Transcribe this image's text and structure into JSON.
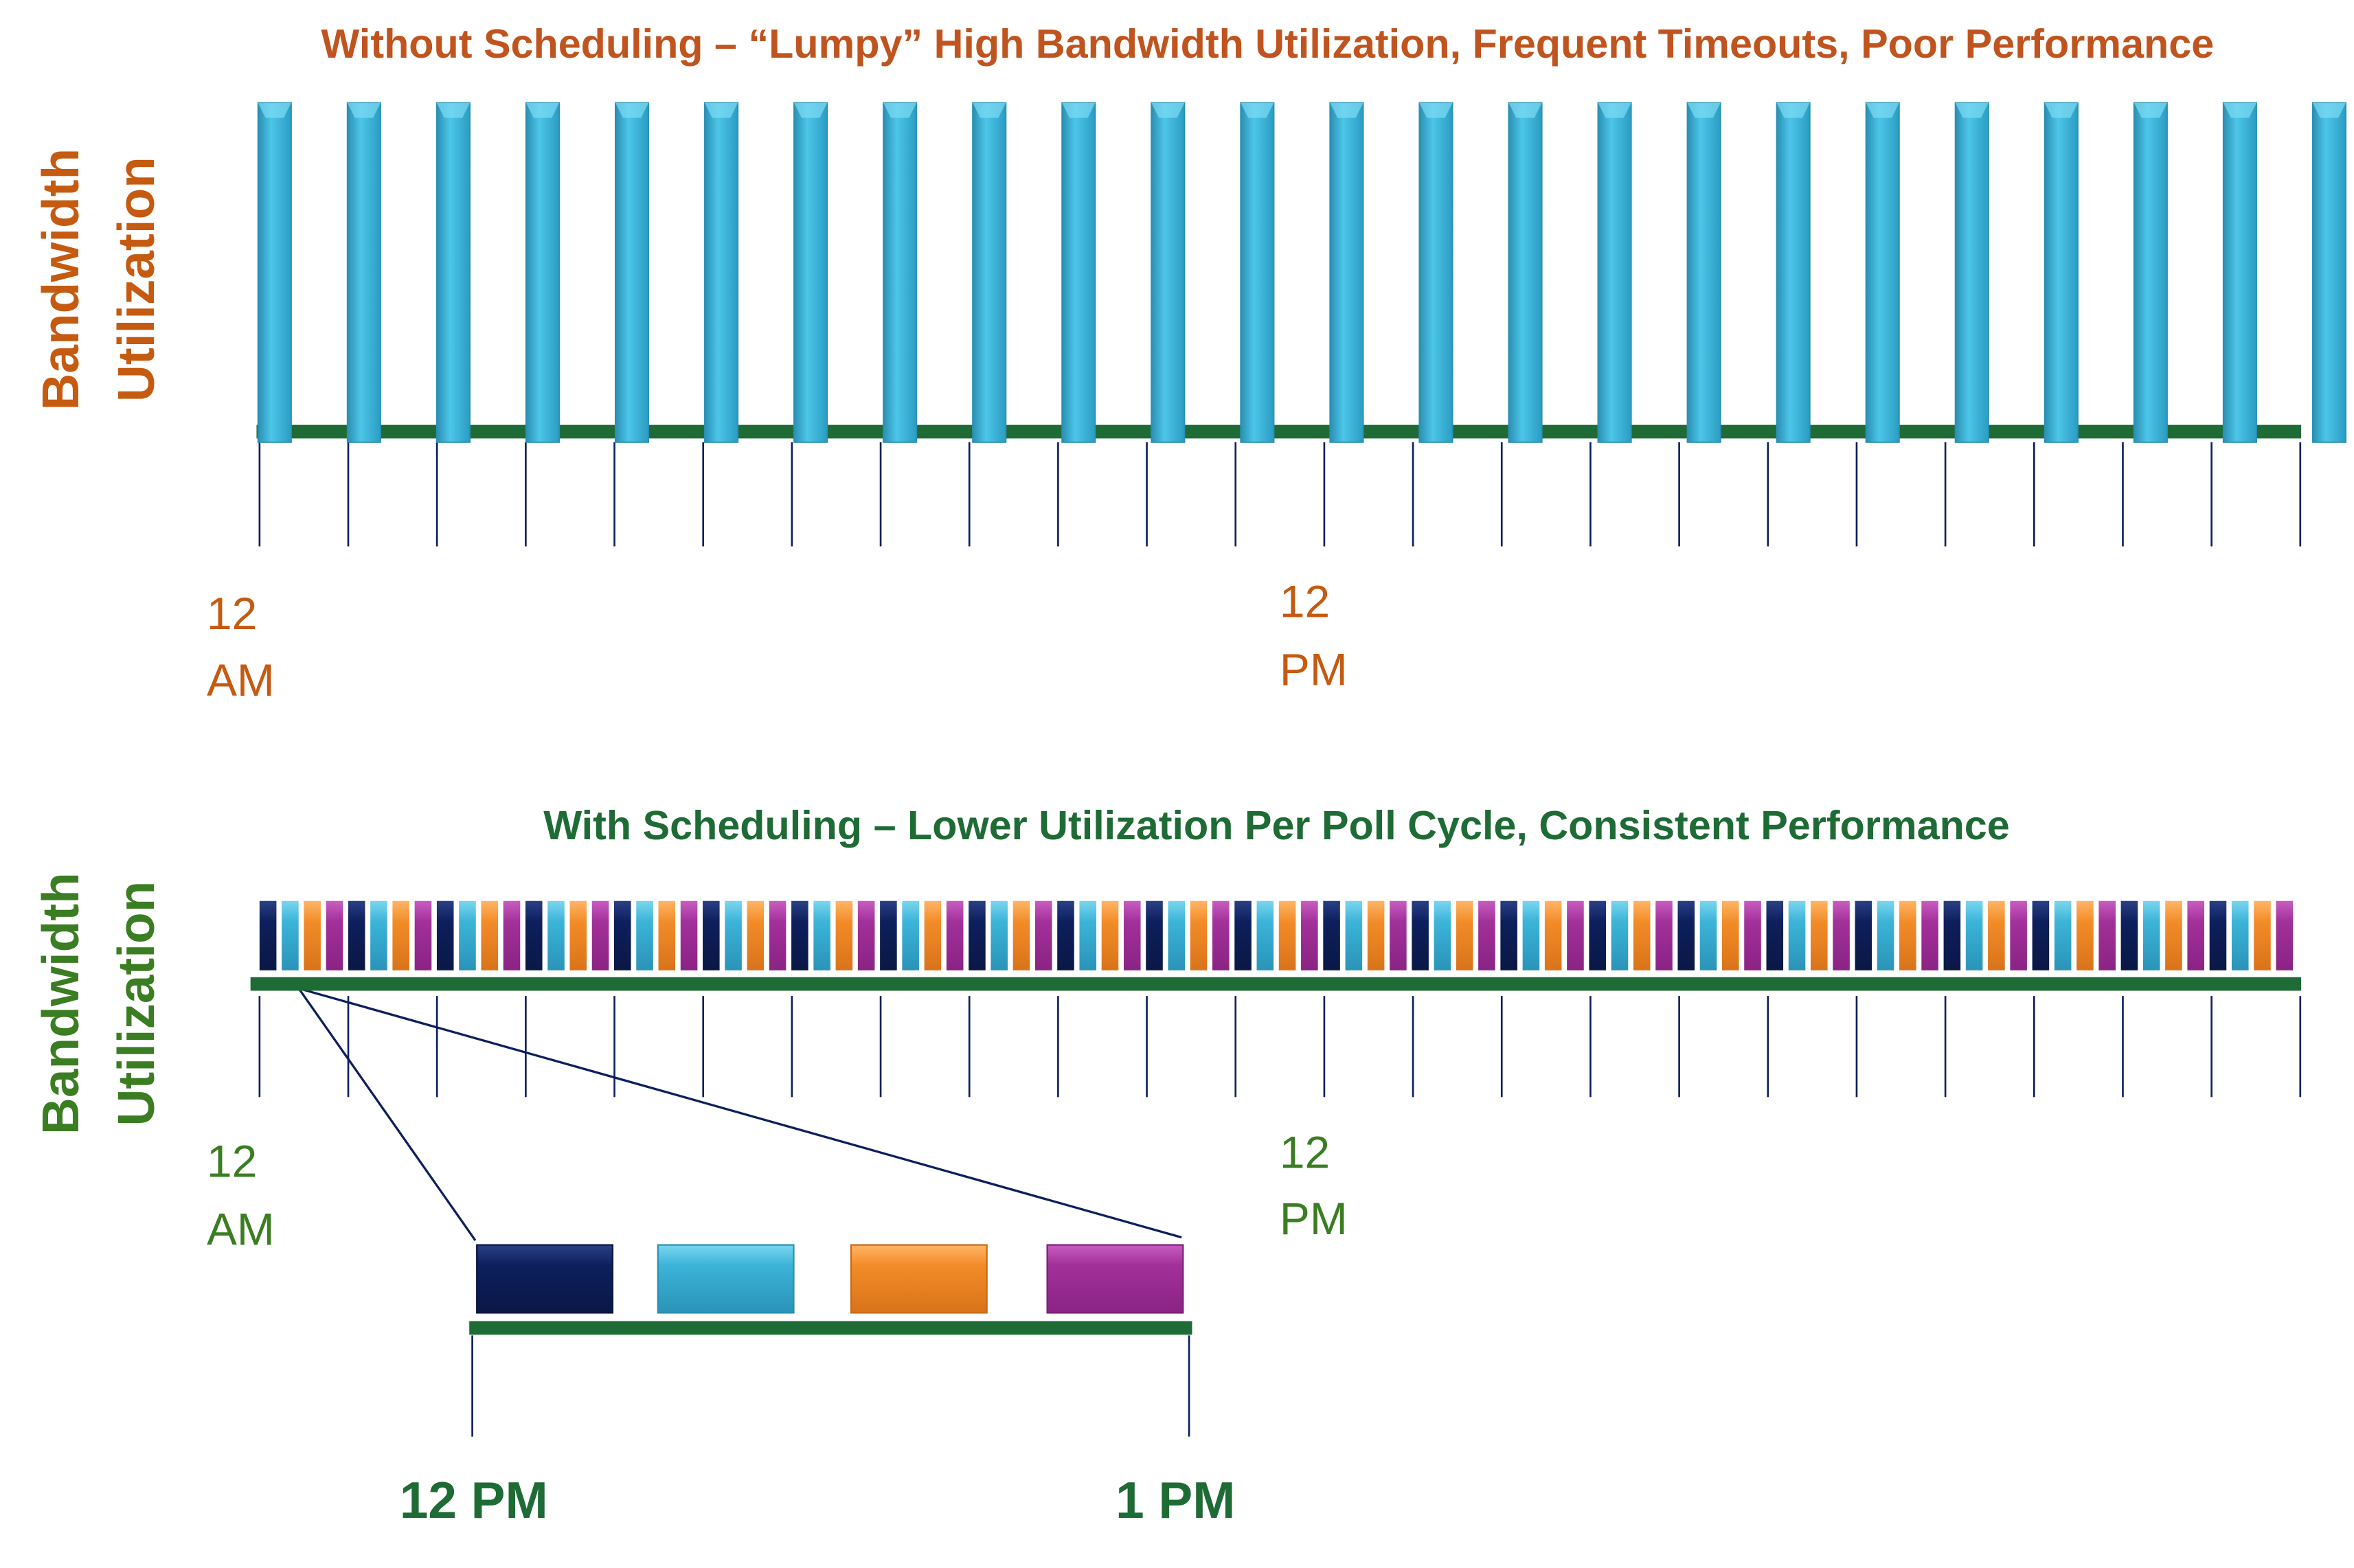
{
  "top": {
    "title": "Without Scheduling – “Lumpy” High Bandwidth Utilization, Frequent Timeouts, Poor Performance",
    "y_label": [
      "Bandwidth",
      "Utilization"
    ],
    "x_labels": [
      [
        "12",
        "AM"
      ],
      [
        "12",
        "PM"
      ]
    ]
  },
  "bottom": {
    "title": "With Scheduling – Lower Utilization Per Poll Cycle, Consistent Performance",
    "y_label": [
      "Bandwidth",
      "Utilization"
    ],
    "x_labels": [
      [
        "12",
        "AM"
      ],
      [
        "12",
        "PM"
      ]
    ],
    "zoom_labels": [
      "12 PM",
      "1 PM"
    ]
  }
}
